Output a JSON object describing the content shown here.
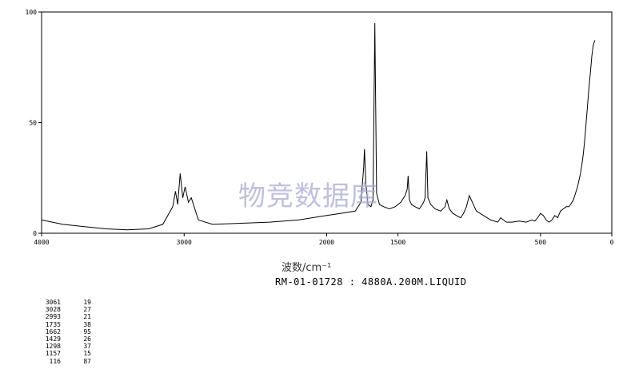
{
  "watermark": "物竞数据库",
  "caption": "RM-01-01728 : 4880A.200M.LIQUID",
  "xlabel": "波数/cm⁻¹",
  "chart_data": {
    "type": "line",
    "xlabel": "波数/cm⁻¹",
    "ylabel": "",
    "xlim": [
      4000,
      0
    ],
    "ylim": [
      0,
      100
    ],
    "x_ticks": [
      4000,
      3000,
      2000,
      1500,
      500,
      0
    ],
    "y_ticks": [
      0,
      50,
      100
    ],
    "grid": false,
    "series": [
      {
        "x": [
          4000,
          3850,
          3700,
          3550,
          3400,
          3250,
          3150,
          3080,
          3061,
          3045,
          3028,
          3010,
          2993,
          2970,
          2950,
          2900,
          2800,
          2600,
          2400,
          2200,
          2000,
          1900,
          1800,
          1760,
          1740,
          1735,
          1725,
          1710,
          1690,
          1675,
          1662,
          1650,
          1630,
          1600,
          1560,
          1520,
          1480,
          1450,
          1435,
          1429,
          1420,
          1405,
          1380,
          1350,
          1320,
          1310,
          1298,
          1290,
          1270,
          1240,
          1200,
          1170,
          1157,
          1140,
          1115,
          1090,
          1060,
          1040,
          1020,
          1000,
          950,
          900,
          850,
          800,
          780,
          760,
          740,
          700,
          650,
          600,
          560,
          540,
          520,
          500,
          480,
          460,
          440,
          420,
          400,
          380,
          360,
          340,
          320,
          300,
          290,
          280,
          270,
          260,
          250,
          240,
          230,
          220,
          210,
          200,
          190,
          180,
          170,
          160,
          150,
          140,
          130,
          120,
          116
        ],
        "values": [
          6,
          4,
          3,
          2,
          1.5,
          2,
          4,
          12,
          19,
          13,
          27,
          16,
          21,
          14,
          16,
          6,
          4,
          4.5,
          5,
          6,
          8,
          9,
          10,
          14,
          30,
          38,
          22,
          13,
          12,
          15,
          95,
          18,
          13,
          12,
          11,
          12,
          14,
          17,
          20,
          26,
          15,
          13,
          12,
          11,
          14,
          16,
          37,
          16,
          13,
          11,
          10,
          12,
          15,
          11,
          9,
          8,
          7,
          9,
          12,
          17,
          10,
          8,
          6,
          5,
          7,
          6,
          5,
          5,
          5.5,
          5,
          6,
          5.5,
          7,
          9,
          8,
          6,
          5,
          6,
          8,
          7,
          10,
          11,
          12,
          12,
          13,
          14,
          15,
          17,
          19,
          21,
          24,
          27,
          31,
          36,
          42,
          50,
          58,
          66,
          73,
          80,
          85,
          87,
          87
        ]
      }
    ]
  },
  "peak_table": [
    {
      "wavenumber": "3061",
      "intensity": "19"
    },
    {
      "wavenumber": "3028",
      "intensity": "27"
    },
    {
      "wavenumber": "2993",
      "intensity": "21"
    },
    {
      "wavenumber": "1735",
      "intensity": "38"
    },
    {
      "wavenumber": "1662",
      "intensity": "95"
    },
    {
      "wavenumber": "1429",
      "intensity": "26"
    },
    {
      "wavenumber": "1298",
      "intensity": "37"
    },
    {
      "wavenumber": "1157",
      "intensity": "15"
    },
    {
      "wavenumber": "116",
      "intensity": "87"
    }
  ]
}
